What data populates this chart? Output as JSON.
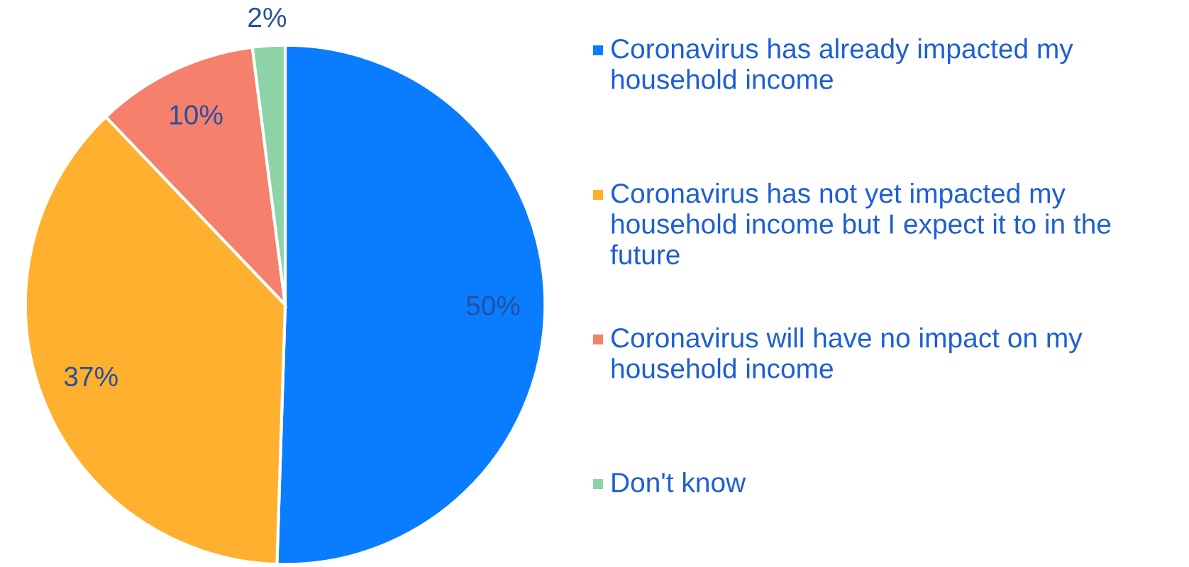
{
  "chart_data": {
    "type": "pie",
    "categories": [
      "Coronavirus has already impacted my household income",
      "Coronavirus has not yet impacted my household income but I expect it to in the future",
      "Coronavirus will have no impact on my household income",
      "Don't know"
    ],
    "values": [
      50,
      37,
      10,
      2
    ],
    "colors": [
      "#0a7cff",
      "#ffb02e",
      "#f5806b",
      "#8ed3a8"
    ],
    "value_labels": [
      "50%",
      "37%",
      "10%",
      "2%"
    ],
    "legend": "right"
  }
}
